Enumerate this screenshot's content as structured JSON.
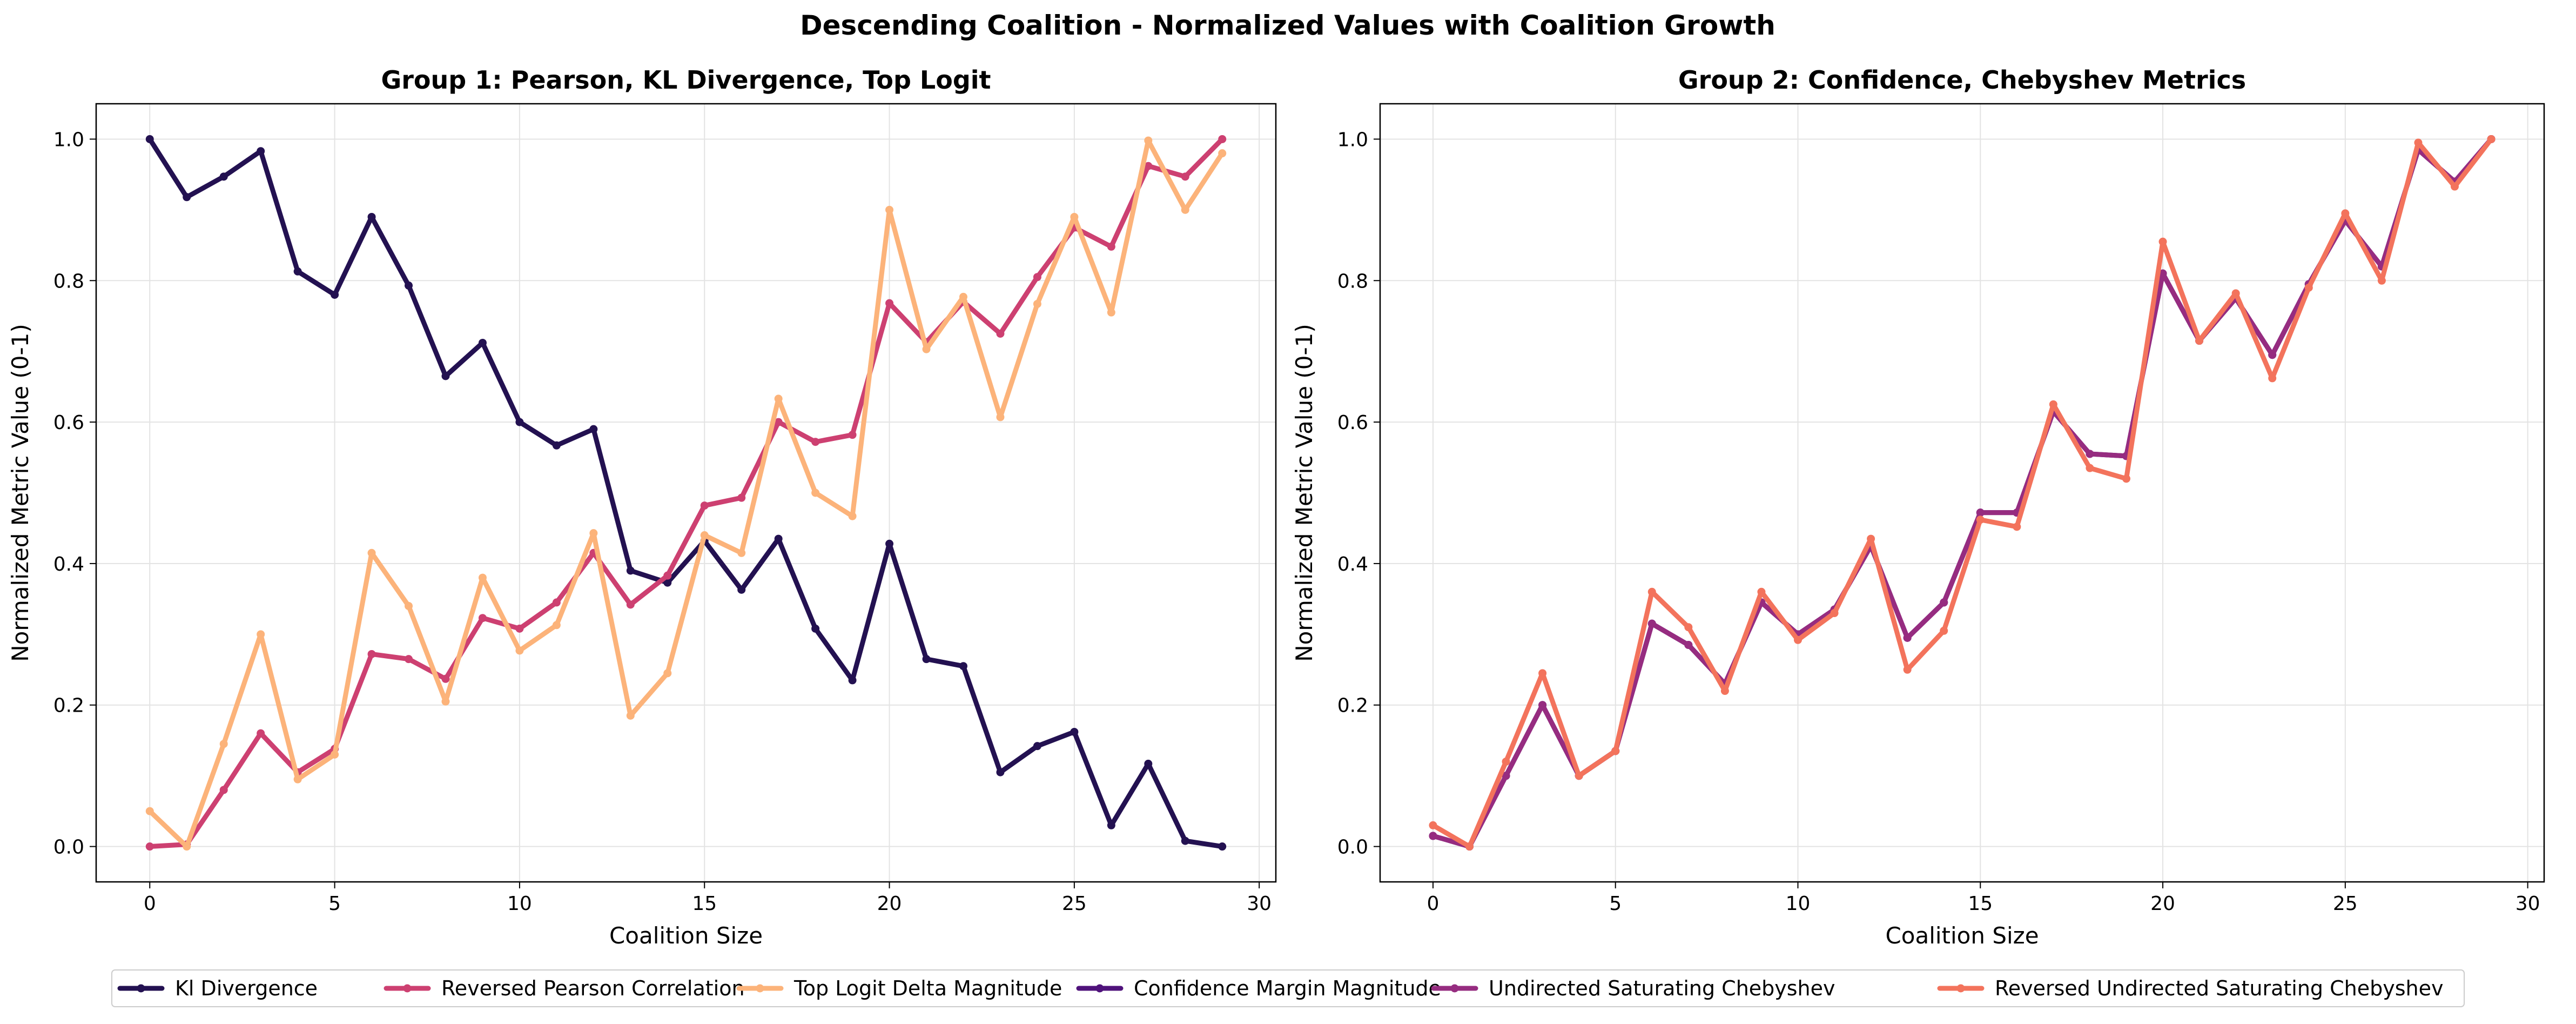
{
  "figure": {
    "title": "Descending Coalition - Normalized Values with Coalition Growth"
  },
  "chart_data": [
    {
      "type": "line",
      "title": "Group 1: Pearson, KL Divergence, Top Logit",
      "xlabel": "Coalition Size",
      "ylabel": "Normalized Metric Value (0-1)",
      "xlim": [
        -1.45,
        30.45
      ],
      "ylim": [
        -0.05,
        1.05
      ],
      "xticks": [
        0,
        5,
        10,
        15,
        20,
        25,
        30
      ],
      "yticks": [
        "0.0",
        "0.2",
        "0.4",
        "0.6",
        "0.8",
        "1.0"
      ],
      "grid": true,
      "x": [
        0,
        1,
        2,
        3,
        4,
        5,
        6,
        7,
        8,
        9,
        10,
        11,
        12,
        13,
        14,
        15,
        16,
        17,
        18,
        19,
        20,
        21,
        22,
        23,
        24,
        25,
        26,
        27,
        28,
        29
      ],
      "series": [
        {
          "name": "Kl Divergence",
          "color": "#231151",
          "values": [
            1.0,
            0.918,
            0.947,
            0.983,
            0.813,
            0.78,
            0.89,
            0.793,
            0.665,
            0.712,
            0.6,
            0.567,
            0.59,
            0.39,
            0.373,
            0.432,
            0.363,
            0.435,
            0.308,
            0.235,
            0.428,
            0.265,
            0.255,
            0.105,
            0.142,
            0.162,
            0.03,
            0.117,
            0.008,
            0.0
          ]
        },
        {
          "name": "Reversed Pearson Correlation",
          "color": "#cd4071",
          "values": [
            0.0,
            0.003,
            0.08,
            0.16,
            0.105,
            0.138,
            0.272,
            0.265,
            0.237,
            0.323,
            0.308,
            0.345,
            0.415,
            0.342,
            0.383,
            0.482,
            0.493,
            0.6,
            0.572,
            0.582,
            0.768,
            0.713,
            0.77,
            0.725,
            0.805,
            0.875,
            0.848,
            0.962,
            0.947,
            1.0
          ]
        },
        {
          "name": "Top Logit Delta Magnitude",
          "color": "#fcb37a",
          "values": [
            0.05,
            0.0,
            0.145,
            0.3,
            0.095,
            0.13,
            0.415,
            0.34,
            0.205,
            0.38,
            0.277,
            0.313,
            0.443,
            0.185,
            0.245,
            0.44,
            0.415,
            0.633,
            0.5,
            0.467,
            0.9,
            0.703,
            0.777,
            0.607,
            0.767,
            0.89,
            0.755,
            0.998,
            0.9,
            0.98
          ]
        }
      ]
    },
    {
      "type": "line",
      "title": "Group 2: Confidence, Chebyshev Metrics",
      "xlabel": "Coalition Size",
      "ylabel": "Normalized Metric Value (0-1)",
      "xlim": [
        -1.45,
        30.45
      ],
      "ylim": [
        -0.05,
        1.05
      ],
      "xticks": [
        0,
        5,
        10,
        15,
        20,
        25,
        30
      ],
      "yticks": [
        "0.0",
        "0.2",
        "0.4",
        "0.6",
        "0.8",
        "1.0"
      ],
      "grid": true,
      "x": [
        0,
        1,
        2,
        3,
        4,
        5,
        6,
        7,
        8,
        9,
        10,
        11,
        12,
        13,
        14,
        15,
        16,
        17,
        18,
        19,
        20,
        21,
        22,
        23,
        24,
        25,
        26,
        27,
        28,
        29
      ],
      "series": [
        {
          "name": "Confidence Margin Magnitude",
          "color": "#4f127b",
          "values": [
            0.015,
            0.0,
            0.1,
            0.2,
            0.1,
            0.135,
            0.315,
            0.285,
            0.23,
            0.345,
            0.3,
            0.335,
            0.425,
            0.295,
            0.345,
            0.472,
            0.472,
            0.615,
            0.555,
            0.552,
            0.81,
            0.715,
            0.775,
            0.695,
            0.795,
            0.885,
            0.82,
            0.985,
            0.94,
            1.0
          ]
        },
        {
          "name": "Undirected Saturating Chebyshev",
          "color": "#962c80",
          "values": [
            0.015,
            0.0,
            0.1,
            0.2,
            0.1,
            0.135,
            0.315,
            0.285,
            0.23,
            0.345,
            0.3,
            0.335,
            0.425,
            0.295,
            0.345,
            0.472,
            0.472,
            0.615,
            0.555,
            0.552,
            0.81,
            0.715,
            0.775,
            0.695,
            0.795,
            0.885,
            0.82,
            0.985,
            0.94,
            1.0
          ]
        },
        {
          "name": "Reversed Undirected Saturating Chebyshev",
          "color": "#f3735c",
          "values": [
            0.03,
            0.0,
            0.12,
            0.245,
            0.1,
            0.135,
            0.36,
            0.31,
            0.22,
            0.36,
            0.292,
            0.33,
            0.435,
            0.25,
            0.305,
            0.462,
            0.452,
            0.625,
            0.535,
            0.52,
            0.855,
            0.715,
            0.782,
            0.662,
            0.79,
            0.895,
            0.8,
            0.995,
            0.933,
            1.0
          ]
        }
      ]
    }
  ],
  "legend": {
    "placement": "bottom-center",
    "entries": [
      {
        "label": "Kl Divergence",
        "color": "#231151"
      },
      {
        "label": "Reversed Pearson Correlation",
        "color": "#cd4071"
      },
      {
        "label": "Top Logit Delta Magnitude",
        "color": "#fcb37a"
      },
      {
        "label": "Confidence Margin Magnitude",
        "color": "#4f127b"
      },
      {
        "label": "Undirected Saturating Chebyshev",
        "color": "#962c80"
      },
      {
        "label": "Reversed Undirected Saturating Chebyshev",
        "color": "#f3735c"
      }
    ]
  }
}
